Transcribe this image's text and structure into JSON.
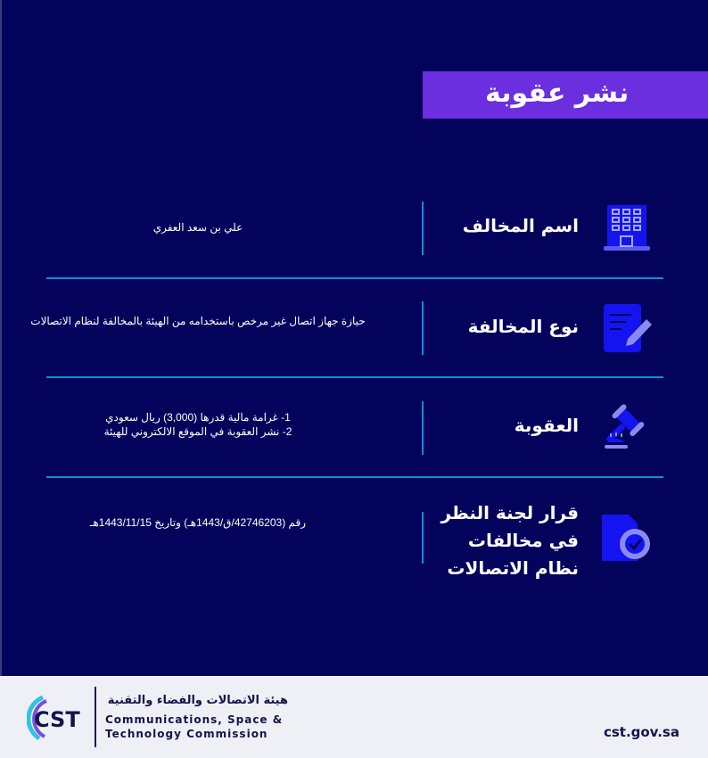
{
  "title": "نشر عقوبة",
  "rows": [
    {
      "label": "اسم المخالف",
      "value": "علي بن سعد العفري",
      "icon": "building-icon"
    },
    {
      "label": "نوع المخالفة",
      "value": "حيازة جهاز اتصال غير مرخص باستخدامه من الهيئة بالمخالفة لنظام الاتصالات",
      "icon": "document-edit-icon"
    },
    {
      "label": "العقوبة",
      "value_lines": [
        "1- غرامة مالية قدرها (3,000) ريال سعودي",
        "2- نشر العقوبة في الموقع الالكتروني للهيئة"
      ],
      "icon": "gavel-icon"
    },
    {
      "label": "قرار لجنة النظر في مخالفات نظام الاتصالات",
      "value": "رقم (42746203/ق/1443هـ) وتاريخ 1443/11/15هـ",
      "icon": "certified-document-icon"
    }
  ],
  "footer": {
    "logo_text": "CST",
    "org_ar": "هيئة الاتصالات والفضاء والتقنية",
    "org_en_1": "Communications, Space &",
    "org_en_2": "Technology Commission",
    "url": "cst.gov.sa"
  },
  "colors": {
    "background": "#03035b",
    "banner": "#6b2fe0",
    "divider": "#0b90d4",
    "icon": "#1414f0"
  }
}
